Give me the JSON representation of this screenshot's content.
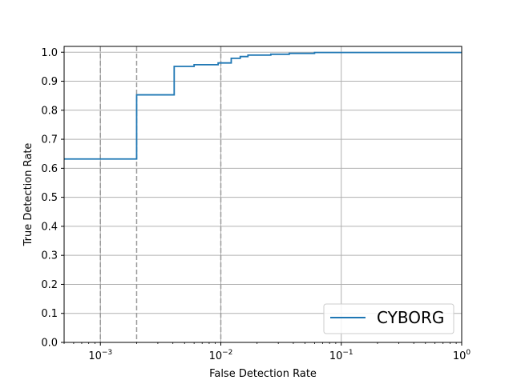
{
  "chart_data": {
    "type": "line",
    "xscale": "log",
    "xlabel": "False Detection Rate",
    "ylabel": "True Detection Rate",
    "xlim": [
      0.0005,
      1
    ],
    "ylim": [
      0,
      1.02
    ],
    "grid": true,
    "legend_position": "bottom-right",
    "x_ticks": [
      {
        "value": 0.001,
        "base": "10",
        "exp": "−3"
      },
      {
        "value": 0.01,
        "base": "10",
        "exp": "−2"
      },
      {
        "value": 0.1,
        "base": "10",
        "exp": "−1"
      },
      {
        "value": 1,
        "base": "10",
        "exp": "0"
      }
    ],
    "y_ticks": [
      "0.0",
      "0.1",
      "0.2",
      "0.3",
      "0.4",
      "0.5",
      "0.6",
      "0.7",
      "0.8",
      "0.9",
      "1.0"
    ],
    "y_tick_values": [
      0,
      0.1,
      0.2,
      0.3,
      0.4,
      0.5,
      0.6,
      0.7,
      0.8,
      0.9,
      1.0
    ],
    "reference_lines_x": [
      0.001,
      0.002,
      0.01
    ],
    "series": [
      {
        "name": "CYBORG",
        "color": "#1f77b4",
        "step": "post",
        "x": [
          0.0005,
          0.002,
          0.002,
          0.0041,
          0.0041,
          0.006,
          0.006,
          0.0095,
          0.0095,
          0.0122,
          0.0122,
          0.0145,
          0.0145,
          0.0168,
          0.0168,
          0.026,
          0.026,
          0.037,
          0.037,
          0.06,
          0.06,
          1
        ],
        "y": [
          0.632,
          0.632,
          0.853,
          0.853,
          0.951,
          0.951,
          0.957,
          0.957,
          0.963,
          0.963,
          0.979,
          0.979,
          0.985,
          0.985,
          0.99,
          0.99,
          0.993,
          0.993,
          0.996,
          0.996,
          0.999,
          0.999
        ]
      }
    ]
  }
}
